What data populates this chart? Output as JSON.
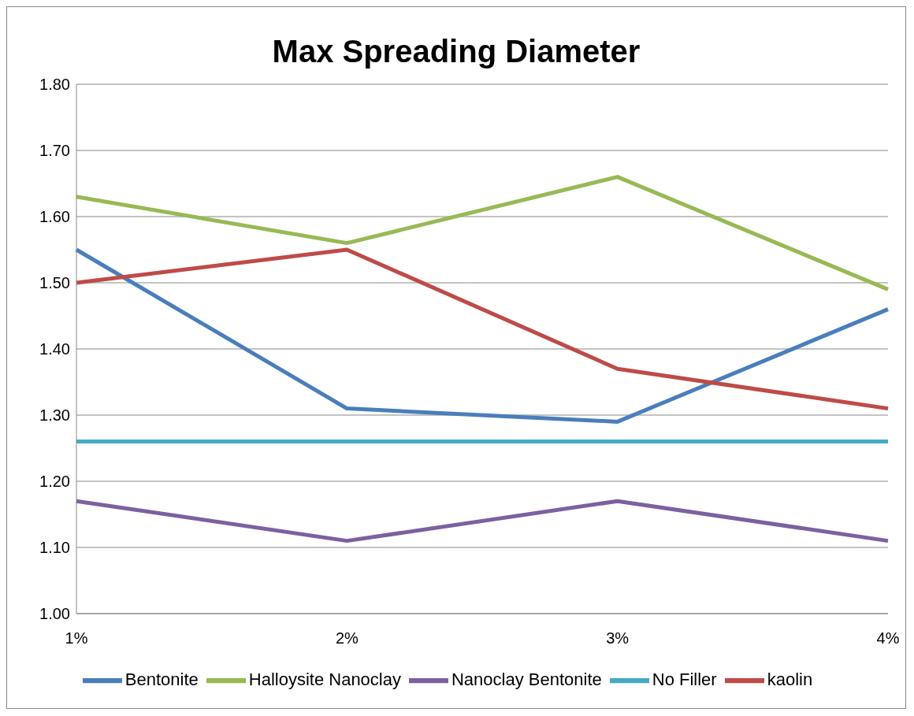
{
  "chart_data": {
    "type": "line",
    "title": "Max Spreading Diameter",
    "categories": [
      "1%",
      "2%",
      "3%",
      "4%"
    ],
    "series": [
      {
        "name": "Bentonite",
        "color": "#4a7ebb",
        "values": [
          1.55,
          1.31,
          1.29,
          1.46
        ]
      },
      {
        "name": "kaolin",
        "color": "#be4b48",
        "values": [
          1.5,
          1.55,
          1.37,
          1.31
        ]
      },
      {
        "name": "Halloysite Nanoclay",
        "color": "#98b954",
        "values": [
          1.63,
          1.56,
          1.66,
          1.49
        ]
      },
      {
        "name": "Nanoclay Bentonite",
        "color": "#7d60a0",
        "values": [
          1.17,
          1.11,
          1.17,
          1.11
        ]
      },
      {
        "name": "No Filler",
        "color": "#46aac5",
        "values": [
          1.26,
          1.26,
          1.26,
          1.26
        ]
      }
    ],
    "ylim": [
      1.0,
      1.8
    ],
    "yticks": [
      {
        "value": 1.0,
        "label": "1.00"
      },
      {
        "value": 1.1,
        "label": "1.10"
      },
      {
        "value": 1.2,
        "label": "1.20"
      },
      {
        "value": 1.3,
        "label": "1.30"
      },
      {
        "value": 1.4,
        "label": "1.40"
      },
      {
        "value": 1.5,
        "label": "1.50"
      },
      {
        "value": 1.6,
        "label": "1.60"
      },
      {
        "value": 1.7,
        "label": "1.70"
      },
      {
        "value": 1.8,
        "label": "1.80"
      }
    ],
    "grid": "y",
    "legend": "bottom",
    "marker": "none",
    "line_style": "solid"
  }
}
